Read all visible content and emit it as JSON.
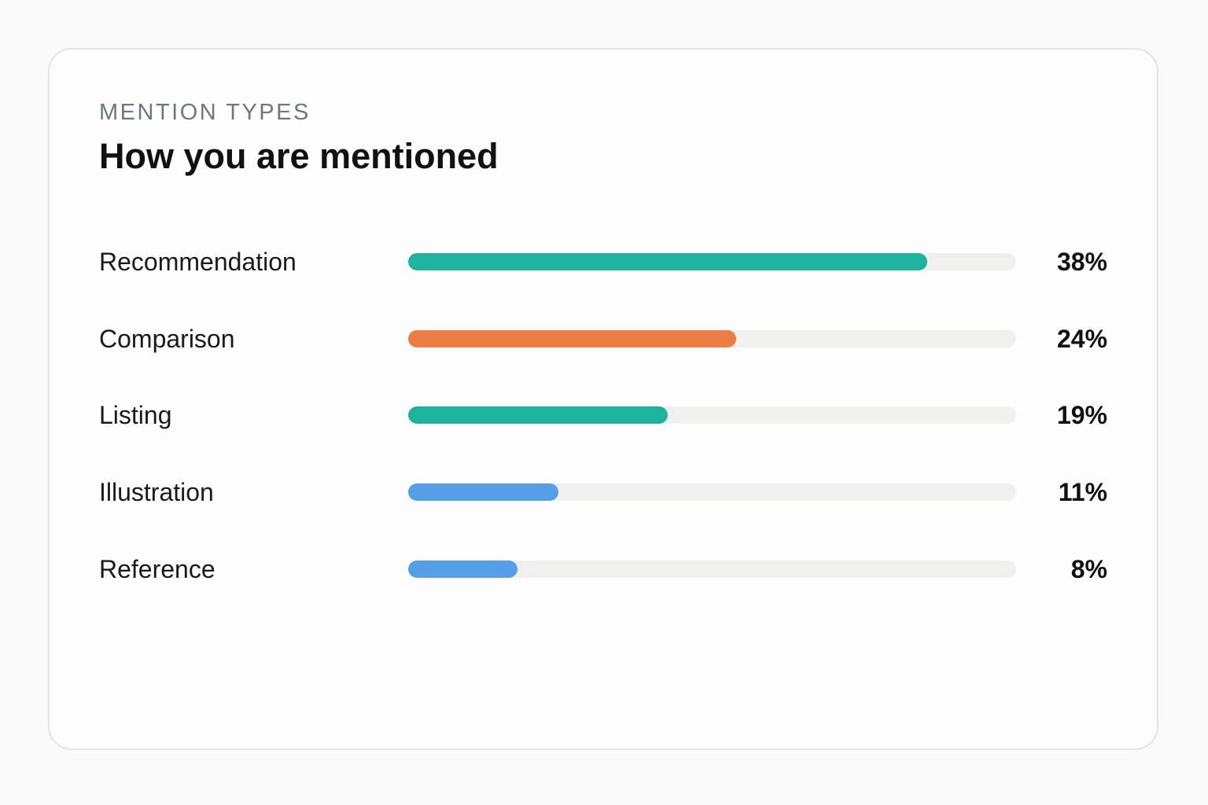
{
  "header": {
    "eyebrow": "MENTION TYPES",
    "title": "How you are mentioned"
  },
  "chart_data": {
    "type": "bar",
    "orientation": "horizontal",
    "title": "How you are mentioned",
    "categories": [
      "Recommendation",
      "Comparison",
      "Listing",
      "Illustration",
      "Reference"
    ],
    "values": [
      38,
      24,
      19,
      11,
      8
    ],
    "value_labels": [
      "38%",
      "24%",
      "19%",
      "11%",
      "8%"
    ],
    "colors": [
      "#1eb39c",
      "#ec7d45",
      "#1eb39c",
      "#569ee8",
      "#569ee8"
    ],
    "xlim": [
      0,
      44.5
    ],
    "grid": false,
    "legend": "none"
  }
}
